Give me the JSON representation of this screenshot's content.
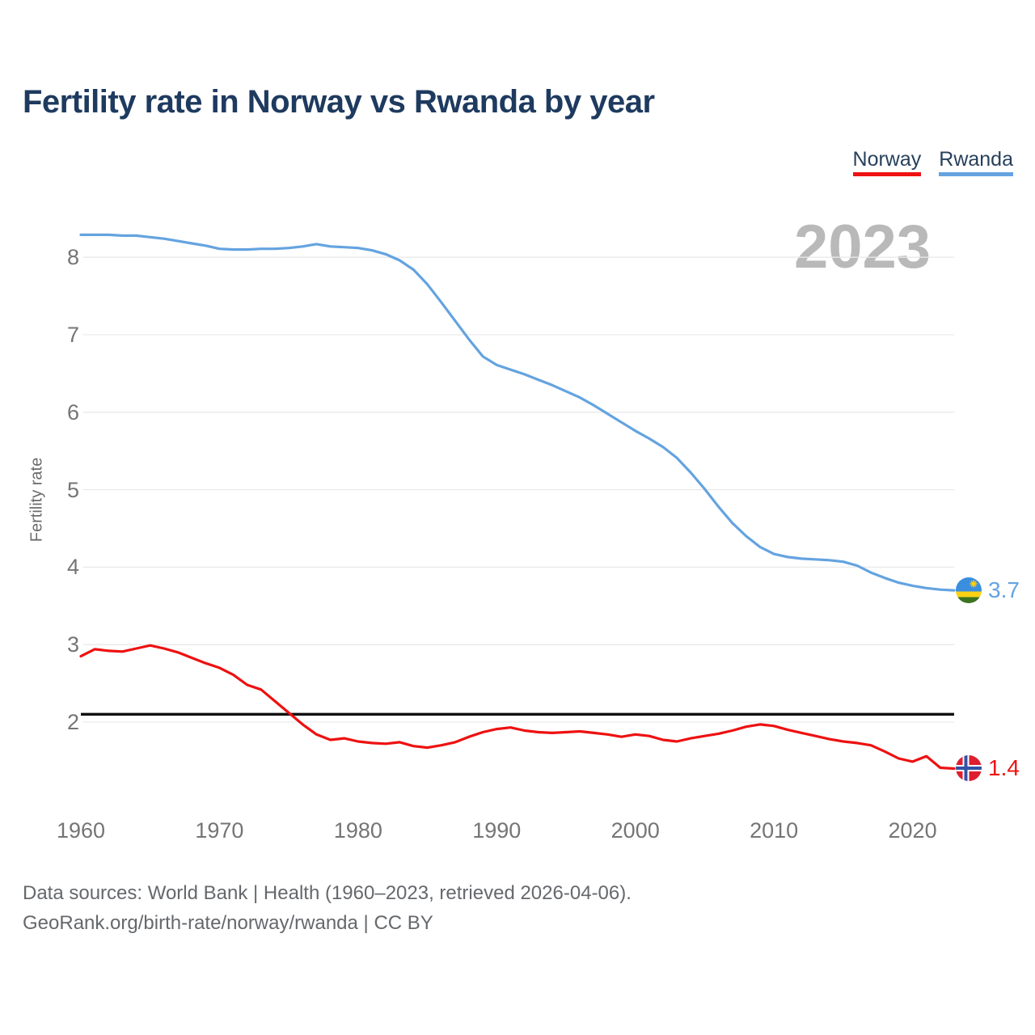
{
  "title": "Fertility rate in Norway vs Rwanda by year",
  "legend": {
    "items": [
      {
        "label": "Norway",
        "color": "#ee1111"
      },
      {
        "label": "Rwanda",
        "color": "#64a3e0"
      }
    ]
  },
  "watermark_year": "2023",
  "footer": {
    "line1": "Data sources: World Bank | Health (1960–2023, retrieved 2026-04-06).",
    "line2": "GeoRank.org/birth-rate/norway/rwanda | CC BY"
  },
  "chart_data": {
    "type": "line",
    "title": "Fertility rate in Norway vs Rwanda by year",
    "xlabel": "",
    "ylabel": "Fertility rate",
    "x_start": 1960,
    "x_end": 2023,
    "x_ticks": [
      1960,
      1970,
      1980,
      1990,
      2000,
      2010,
      2020
    ],
    "y_ticks": [
      2,
      3,
      4,
      5,
      6,
      7,
      8
    ],
    "ylim": [
      1.3,
      8.45
    ],
    "grid": "horizontal",
    "gridline_color": "#e9e9e9",
    "reference_line": {
      "value": 2.1,
      "color": "#111111"
    },
    "series": [
      {
        "name": "Norway",
        "color": "#ee1111",
        "end_label": "1.4",
        "flag_icon": "norway-flag",
        "values": [
          2.85,
          2.94,
          2.92,
          2.91,
          2.95,
          2.99,
          2.95,
          2.9,
          2.83,
          2.76,
          2.7,
          2.61,
          2.48,
          2.42,
          2.27,
          2.12,
          1.97,
          1.84,
          1.77,
          1.79,
          1.75,
          1.73,
          1.72,
          1.74,
          1.69,
          1.67,
          1.7,
          1.74,
          1.81,
          1.87,
          1.91,
          1.93,
          1.89,
          1.87,
          1.86,
          1.87,
          1.88,
          1.86,
          1.84,
          1.81,
          1.84,
          1.82,
          1.77,
          1.75,
          1.79,
          1.82,
          1.85,
          1.89,
          1.94,
          1.97,
          1.95,
          1.9,
          1.86,
          1.82,
          1.78,
          1.75,
          1.73,
          1.7,
          1.62,
          1.53,
          1.49,
          1.56,
          1.41,
          1.4
        ]
      },
      {
        "name": "Rwanda",
        "color": "#64a3e0",
        "end_label": "3.7",
        "flag_icon": "rwanda-flag",
        "values": [
          8.29,
          8.29,
          8.29,
          8.28,
          8.28,
          8.26,
          8.24,
          8.21,
          8.18,
          8.15,
          8.11,
          8.1,
          8.1,
          8.11,
          8.11,
          8.12,
          8.14,
          8.17,
          8.14,
          8.13,
          8.12,
          8.09,
          8.04,
          7.96,
          7.84,
          7.65,
          7.42,
          7.18,
          6.94,
          6.72,
          6.61,
          6.55,
          6.49,
          6.42,
          6.35,
          6.27,
          6.19,
          6.09,
          5.98,
          5.87,
          5.76,
          5.66,
          5.55,
          5.41,
          5.22,
          5.01,
          4.78,
          4.57,
          4.4,
          4.26,
          4.17,
          4.13,
          4.11,
          4.1,
          4.09,
          4.07,
          4.02,
          3.93,
          3.86,
          3.8,
          3.76,
          3.73,
          3.71,
          3.7
        ]
      }
    ]
  }
}
